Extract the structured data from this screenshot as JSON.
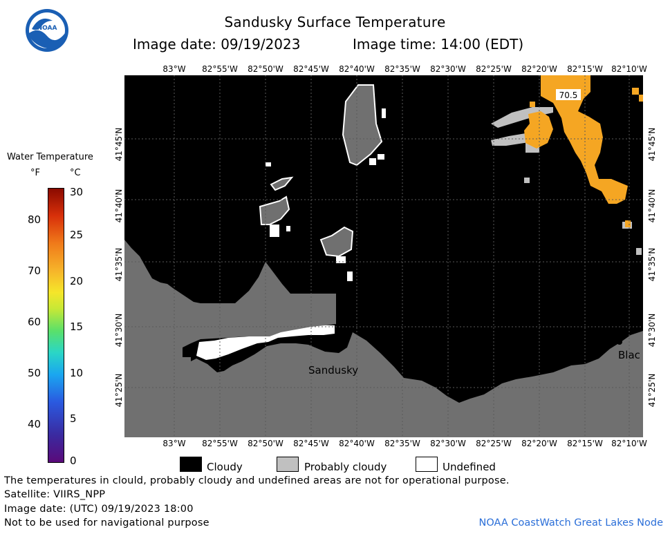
{
  "header": {
    "title": "Sandusky Surface Temperature",
    "image_date": "Image date: 09/19/2023",
    "image_time": "Image time: 14:00 (EDT)"
  },
  "logo": {
    "text": "NOAA"
  },
  "colorbar": {
    "title": "Water Temperature",
    "unit_f": "°F",
    "unit_c": "°C",
    "f_ticks": [
      "80",
      "70",
      "60",
      "50",
      "40"
    ],
    "c_ticks": [
      "30",
      "25",
      "20",
      "15",
      "10",
      "5",
      "0"
    ]
  },
  "map": {
    "lon_labels": [
      "83°W",
      "82°55'W",
      "82°50'W",
      "82°45'W",
      "82°40'W",
      "82°35'W",
      "82°30'W",
      "82°25'W",
      "82°20'W",
      "82°15'W",
      "82°10'W"
    ],
    "lat_labels": [
      "41°45'N",
      "41°40'N",
      "41°35'N",
      "41°30'N",
      "41°25'N"
    ],
    "place_sandusky": "Sandusky",
    "place_blac": "Blac",
    "temp_label": "70.5"
  },
  "legend": {
    "cloudy": "Cloudy",
    "probably_cloudy": "Probably cloudy",
    "undefined": "Undefined",
    "colors": {
      "cloudy": "#000000",
      "probably_cloudy": "#c0c0c0",
      "undefined": "#ffffff",
      "land": "#707070",
      "water_warm": "#f5a623"
    }
  },
  "footer": {
    "line1": "The temperatures in clould, probably cloudy and undefined areas are not for operational purpose.",
    "line2": "Satellite: VIIRS_NPP",
    "line3": "Image date: (UTC) 09/19/2023  18:00",
    "line4": "Not to be used for navigational purpose",
    "credit": "NOAA CoastWatch Great Lakes Node"
  }
}
